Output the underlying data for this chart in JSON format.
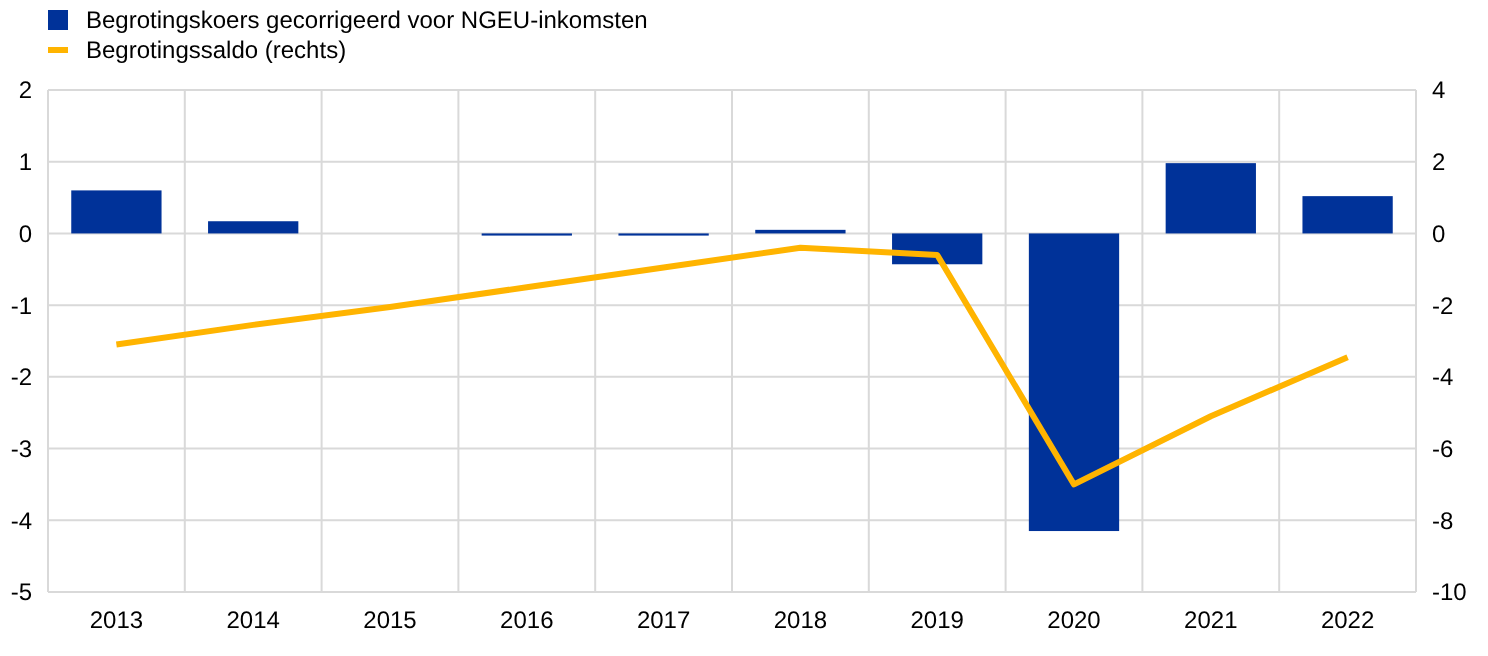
{
  "chart_data": {
    "type": "bar",
    "categories": [
      "2013",
      "2014",
      "2015",
      "2016",
      "2017",
      "2018",
      "2019",
      "2020",
      "2021",
      "2022"
    ],
    "series": [
      {
        "name": "Begrotingskoers gecorrigeerd voor NGEU-inkomsten",
        "color": "#003299",
        "values": [
          0.6,
          0.17,
          0,
          -0.03,
          -0.03,
          0.05,
          -0.43,
          -4.15,
          0.98,
          0.52
        ]
      },
      {
        "name": "Begrotingssaldo (rechts)",
        "type": "line",
        "axis": "y2",
        "color": "#ffb400",
        "values": [
          -3.1,
          -2.55,
          -2.05,
          -1.5,
          -0.95,
          -0.4,
          -0.6,
          -7.0,
          -5.1,
          -3.45
        ]
      }
    ],
    "ylim": [
      -5,
      2
    ],
    "yticks": [
      -5,
      -4,
      -3,
      -2,
      -1,
      0,
      1,
      2
    ],
    "y2lim": [
      -10,
      4
    ],
    "y2ticks": [
      -10,
      -8,
      -6,
      -4,
      -2,
      0,
      2,
      4
    ],
    "grid": true,
    "legend": "top left",
    "marker": "none",
    "line_style": "solid"
  }
}
